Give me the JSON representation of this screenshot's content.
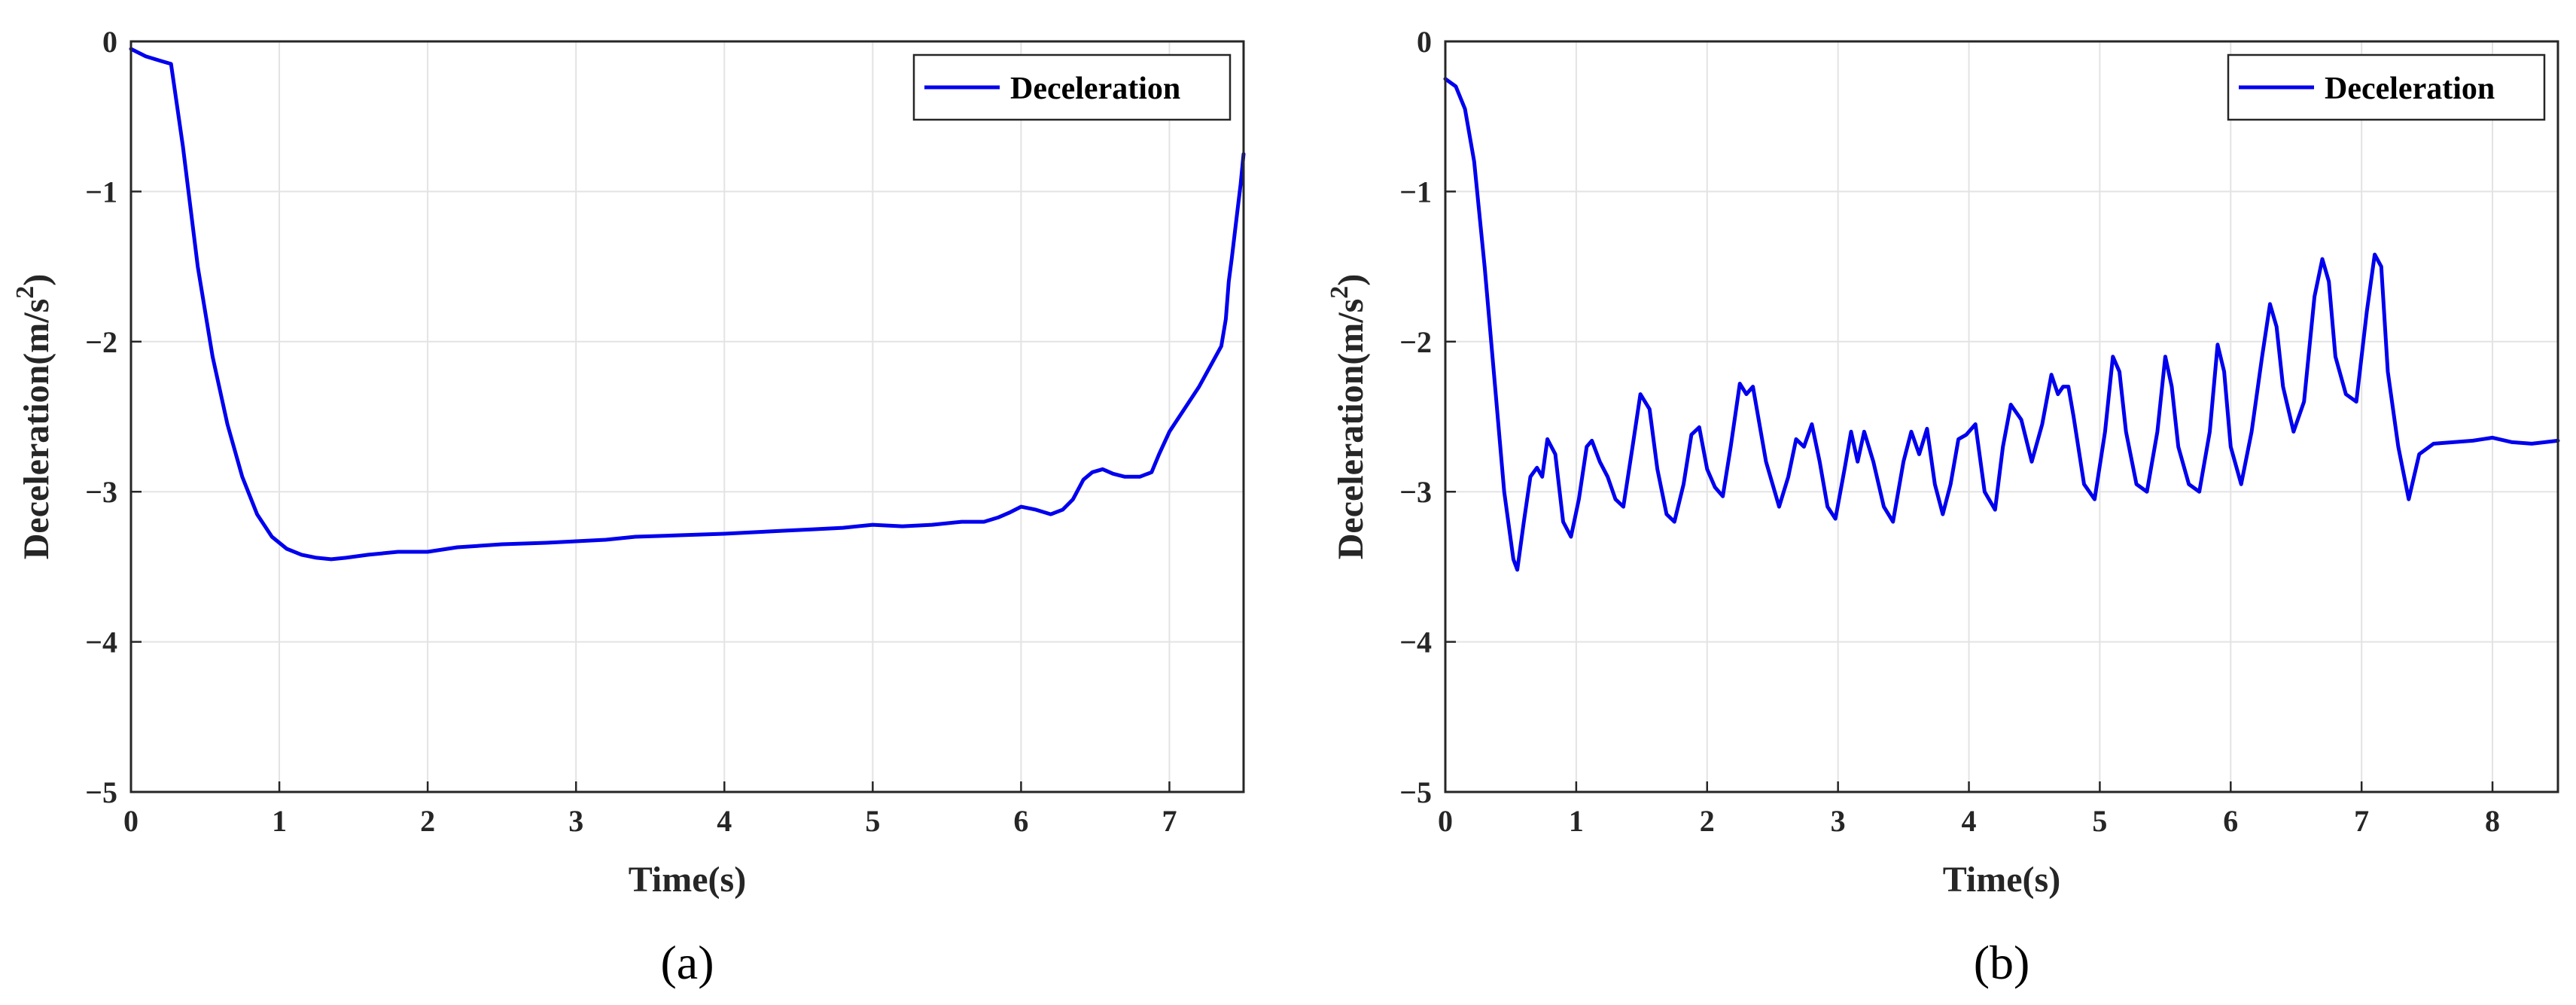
{
  "chart_data": [
    {
      "type": "line",
      "panel_label": "(a)",
      "xlabel": "Time(s)",
      "ylabel": "Deceleration(m/s",
      "ylabel_sup": "2",
      "ylabel_end": ")",
      "xlim": [
        0,
        7.5
      ],
      "ylim": [
        -5,
        0
      ],
      "xticks": [
        0,
        1,
        2,
        3,
        4,
        5,
        6,
        7
      ],
      "yticks": [
        0,
        -1,
        -2,
        -3,
        -4,
        -5
      ],
      "grid": true,
      "legend_position": "top-right",
      "series": [
        {
          "name": "Deceleration",
          "color": "#0000ee",
          "x": [
            0,
            0.1,
            0.2,
            0.27,
            0.35,
            0.45,
            0.55,
            0.65,
            0.75,
            0.85,
            0.95,
            1.05,
            1.15,
            1.25,
            1.35,
            1.45,
            1.6,
            1.8,
            2.0,
            2.2,
            2.5,
            2.8,
            3.0,
            3.2,
            3.4,
            3.7,
            4.0,
            4.2,
            4.4,
            4.6,
            4.8,
            5.0,
            5.2,
            5.4,
            5.6,
            5.75,
            5.85,
            5.92,
            6.0,
            6.1,
            6.2,
            6.28,
            6.35,
            6.42,
            6.48,
            6.55,
            6.62,
            6.7,
            6.8,
            6.88,
            6.93,
            7.0,
            7.1,
            7.2,
            7.3,
            7.35,
            7.38,
            7.4,
            7.42,
            7.45,
            7.48,
            7.5
          ],
          "y": [
            -0.05,
            -0.1,
            -0.13,
            -0.15,
            -0.7,
            -1.5,
            -2.1,
            -2.55,
            -2.9,
            -3.15,
            -3.3,
            -3.38,
            -3.42,
            -3.44,
            -3.45,
            -3.44,
            -3.42,
            -3.4,
            -3.4,
            -3.37,
            -3.35,
            -3.34,
            -3.33,
            -3.32,
            -3.3,
            -3.29,
            -3.28,
            -3.27,
            -3.26,
            -3.25,
            -3.24,
            -3.22,
            -3.23,
            -3.22,
            -3.2,
            -3.2,
            -3.17,
            -3.14,
            -3.1,
            -3.12,
            -3.15,
            -3.12,
            -3.05,
            -2.92,
            -2.87,
            -2.85,
            -2.88,
            -2.9,
            -2.9,
            -2.87,
            -2.75,
            -2.6,
            -2.45,
            -2.3,
            -2.12,
            -2.03,
            -1.85,
            -1.6,
            -1.45,
            -1.2,
            -0.95,
            -0.75
          ]
        }
      ]
    },
    {
      "type": "line",
      "panel_label": "(b)",
      "xlabel": "Time(s)",
      "ylabel": "Deceleration(m/s",
      "ylabel_sup": "2",
      "ylabel_end": ")",
      "xlim": [
        0,
        8.5
      ],
      "ylim": [
        -5,
        0
      ],
      "xticks": [
        0,
        1,
        2,
        3,
        4,
        5,
        6,
        7,
        8
      ],
      "yticks": [
        0,
        -1,
        -2,
        -3,
        -4,
        -5
      ],
      "grid": true,
      "legend_position": "top-right",
      "series": [
        {
          "name": "Deceleration",
          "color": "#0000ee",
          "x": [
            0,
            0.08,
            0.15,
            0.22,
            0.3,
            0.38,
            0.45,
            0.52,
            0.55,
            0.6,
            0.65,
            0.7,
            0.74,
            0.78,
            0.84,
            0.9,
            0.96,
            1.02,
            1.08,
            1.12,
            1.18,
            1.24,
            1.3,
            1.36,
            1.43,
            1.49,
            1.56,
            1.62,
            1.69,
            1.75,
            1.82,
            1.88,
            1.94,
            2.0,
            2.06,
            2.12,
            2.18,
            2.25,
            2.3,
            2.35,
            2.45,
            2.55,
            2.62,
            2.68,
            2.74,
            2.8,
            2.86,
            2.92,
            2.98,
            3.05,
            3.1,
            3.15,
            3.2,
            3.27,
            3.35,
            3.42,
            3.5,
            3.56,
            3.62,
            3.68,
            3.74,
            3.8,
            3.86,
            3.92,
            3.98,
            4.05,
            4.12,
            4.2,
            4.26,
            4.32,
            4.4,
            4.48,
            4.56,
            4.63,
            4.68,
            4.72,
            4.76,
            4.8,
            4.88,
            4.96,
            5.04,
            5.1,
            5.15,
            5.2,
            5.28,
            5.36,
            5.44,
            5.5,
            5.55,
            5.6,
            5.68,
            5.76,
            5.84,
            5.9,
            5.95,
            6.0,
            6.08,
            6.16,
            6.24,
            6.3,
            6.35,
            6.4,
            6.48,
            6.56,
            6.64,
            6.7,
            6.75,
            6.8,
            6.88,
            6.96,
            7.04,
            7.1,
            7.15,
            7.2,
            7.28,
            7.36,
            7.44,
            7.55,
            7.7,
            7.85,
            8.0,
            8.15,
            8.3,
            8.5
          ],
          "y": [
            -0.25,
            -0.3,
            -0.45,
            -0.8,
            -1.5,
            -2.3,
            -3.0,
            -3.45,
            -3.52,
            -3.2,
            -2.9,
            -2.84,
            -2.9,
            -2.65,
            -2.75,
            -3.2,
            -3.3,
            -3.05,
            -2.7,
            -2.66,
            -2.8,
            -2.9,
            -3.05,
            -3.1,
            -2.7,
            -2.35,
            -2.45,
            -2.85,
            -3.15,
            -3.2,
            -2.95,
            -2.62,
            -2.57,
            -2.85,
            -2.97,
            -3.03,
            -2.7,
            -2.28,
            -2.35,
            -2.3,
            -2.8,
            -3.1,
            -2.9,
            -2.65,
            -2.7,
            -2.55,
            -2.8,
            -3.1,
            -3.18,
            -2.85,
            -2.6,
            -2.8,
            -2.6,
            -2.8,
            -3.1,
            -3.2,
            -2.8,
            -2.6,
            -2.75,
            -2.58,
            -2.95,
            -3.15,
            -2.95,
            -2.65,
            -2.62,
            -2.55,
            -3.0,
            -3.12,
            -2.7,
            -2.42,
            -2.52,
            -2.8,
            -2.55,
            -2.22,
            -2.35,
            -2.3,
            -2.3,
            -2.5,
            -2.95,
            -3.05,
            -2.6,
            -2.1,
            -2.2,
            -2.6,
            -2.95,
            -3.0,
            -2.6,
            -2.1,
            -2.3,
            -2.7,
            -2.95,
            -3.0,
            -2.6,
            -2.02,
            -2.2,
            -2.7,
            -2.95,
            -2.6,
            -2.1,
            -1.75,
            -1.9,
            -2.3,
            -2.6,
            -2.4,
            -1.7,
            -1.45,
            -1.6,
            -2.1,
            -2.35,
            -2.4,
            -1.8,
            -1.42,
            -1.5,
            -2.2,
            -2.7,
            -3.05,
            -2.75,
            -2.68,
            -2.67,
            -2.66,
            -2.64,
            -2.67,
            -2.68,
            -2.66
          ]
        }
      ]
    }
  ]
}
